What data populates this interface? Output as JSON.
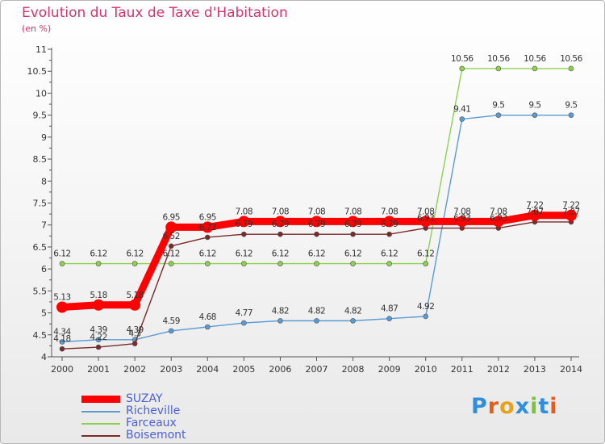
{
  "title": "Evolution du Taux de Taxe d'Habitation",
  "unit": "(en %)",
  "logo_text": "Proxiti",
  "logo_colors": [
    "#2f8fd8",
    "#e85c1a",
    "#e8a21a",
    "#2f8fd8",
    "#7cc23a",
    "#2f8fd8",
    "#e85c1a"
  ],
  "chart_data": {
    "type": "line",
    "x": [
      "2000",
      "2001",
      "2002",
      "2003",
      "2004",
      "2005",
      "2006",
      "2007",
      "2008",
      "2009",
      "2010",
      "2011",
      "2012",
      "2013",
      "2014"
    ],
    "ylim": [
      4,
      11
    ],
    "yticks": [
      "4",
      "4.5",
      "5",
      "5.5",
      "6",
      "6.5",
      "7",
      "7.5",
      "8",
      "8.5",
      "9",
      "9.5",
      "10",
      "10.5",
      "11"
    ],
    "grid": false,
    "legend_position": "bottom-left",
    "series": [
      {
        "name": "SUZAY",
        "color": "#ff0000",
        "values": [
          5.13,
          5.18,
          5.18,
          6.95,
          6.95,
          7.08,
          7.08,
          7.08,
          7.08,
          7.08,
          7.08,
          7.08,
          7.08,
          7.22,
          7.22
        ],
        "labels": [
          "5.13",
          "5.18",
          "5.18",
          "6.95",
          "6.95",
          "7.08",
          "7.08",
          "7.08",
          "7.08",
          "7.08",
          "7.08",
          "7.08",
          "7.08",
          "7.22",
          "7.22"
        ]
      },
      {
        "name": "Richeville",
        "color": "#5b9bd5",
        "values": [
          4.34,
          4.39,
          4.39,
          4.59,
          4.68,
          4.77,
          4.82,
          4.82,
          4.82,
          4.87,
          4.92,
          9.41,
          9.5,
          9.5,
          9.5
        ],
        "labels": [
          "4.34",
          "4.39",
          "4.39",
          "4.59",
          "4.68",
          "4.77",
          "4.82",
          "4.82",
          "4.82",
          "4.87",
          "4.92",
          "9.41",
          "9.5",
          "9.5",
          "9.5"
        ]
      },
      {
        "name": "Farceaux",
        "color": "#8fd14f",
        "values": [
          6.12,
          6.12,
          6.12,
          6.12,
          6.12,
          6.12,
          6.12,
          6.12,
          6.12,
          6.12,
          6.12,
          10.56,
          10.56,
          10.56,
          10.56
        ],
        "labels": [
          "6.12",
          "6.12",
          "6.12",
          "6.12",
          "6.12",
          "6.12",
          "6.12",
          "6.12",
          "6.12",
          "6.12",
          "6.12",
          "10.56",
          "10.56",
          "10.56",
          "10.56"
        ]
      },
      {
        "name": "Boisemont",
        "color": "#7a2a2a",
        "values": [
          4.18,
          4.22,
          4.3,
          6.52,
          6.72,
          6.79,
          6.79,
          6.79,
          6.79,
          6.79,
          6.93,
          6.93,
          6.93,
          7.07,
          7.07
        ],
        "labels": [
          "4.18",
          "4.22",
          "4.3",
          "6.52",
          "6.72",
          "6.79",
          "6.79",
          "6.79",
          "6.79",
          "6.79",
          "6.93",
          "6.93",
          "6.93",
          "7.07",
          "7.07"
        ]
      }
    ]
  }
}
